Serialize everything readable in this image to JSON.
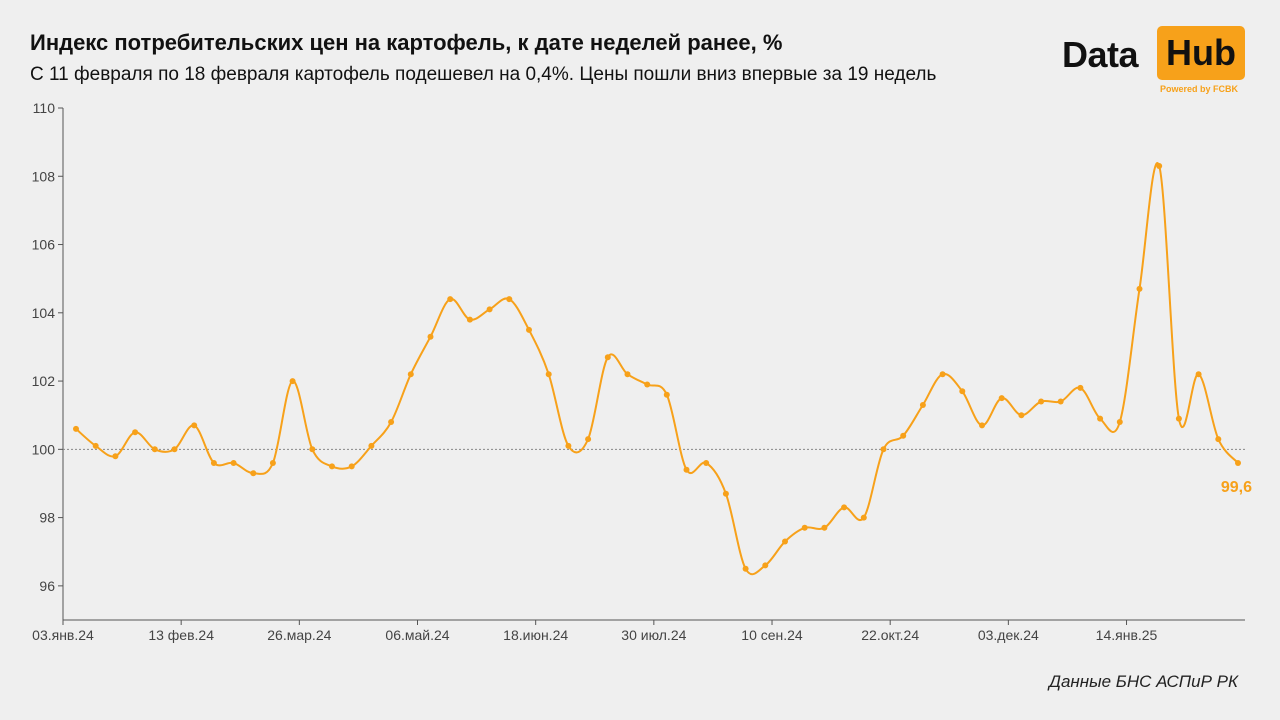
{
  "header": {
    "title": "Индекс потребительских цен на картофель, к дате неделей ранее, %",
    "subtitle": "С 11 февраля по 18 февраля картофель подешевел на 0,4%. Цены пошли вниз впервые за 19 недель"
  },
  "logo": {
    "data_text": "Data",
    "hub_text": "Hub",
    "powered_text": "Powered by FCBK",
    "accent_color": "#f7a11a"
  },
  "source": "Данные БНС АСПиР РК",
  "chart_data": {
    "type": "line",
    "title": "Индекс потребительских цен на картофель, к дате неделей ранее, %",
    "x_start": "03.янв.24",
    "x_step": "1 week",
    "x_ticks": [
      "03.янв.24",
      "13 фев.24",
      "26.мар.24",
      "06.май.24",
      "18.июн.24",
      "30 июл.24",
      "10 сен.24",
      "22.окт.24",
      "03.дек.24",
      "14.янв.25"
    ],
    "x_tick_index": [
      0,
      6,
      12,
      18,
      24,
      30,
      36,
      42,
      48,
      54
    ],
    "ylim": [
      95,
      110
    ],
    "y_ticks": [
      96,
      98,
      100,
      102,
      104,
      106,
      108,
      110
    ],
    "reference_line": 100,
    "grid": false,
    "series": [
      {
        "color": "#f7a11a",
        "values": [
          100.6,
          100.1,
          99.8,
          100.5,
          100.0,
          100.0,
          100.7,
          99.6,
          99.6,
          99.3,
          99.6,
          102.0,
          100.0,
          99.5,
          99.5,
          100.1,
          100.8,
          102.2,
          103.3,
          104.4,
          103.8,
          104.1,
          104.4,
          103.5,
          102.2,
          100.1,
          100.3,
          102.7,
          102.2,
          101.9,
          101.6,
          99.4,
          99.6,
          98.7,
          96.5,
          96.6,
          97.3,
          97.7,
          97.7,
          98.3,
          98.0,
          100.0,
          100.4,
          101.3,
          102.2,
          101.7,
          100.7,
          101.5,
          101.0,
          101.4,
          101.4,
          101.8,
          100.9,
          100.8,
          104.7,
          108.3,
          100.9,
          102.2,
          100.3,
          99.6
        ]
      }
    ],
    "last_value_label": "99,6"
  }
}
